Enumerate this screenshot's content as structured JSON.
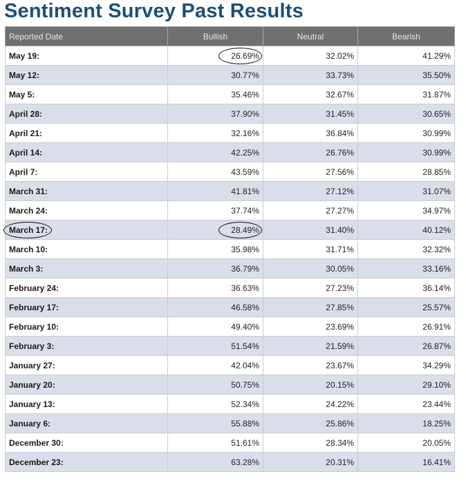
{
  "page": {
    "title": "Sentiment Survey Past Results"
  },
  "table": {
    "headers": [
      "Reported Date",
      "Bullish",
      "Neutral",
      "Bearish"
    ],
    "rows": [
      {
        "date": "May 19:",
        "bullish": "26.69%",
        "neutral": "32.02%",
        "bearish": "41.29%",
        "circled_bullish": true
      },
      {
        "date": "May 12:",
        "bullish": "30.77%",
        "neutral": "33.73%",
        "bearish": "35.50%"
      },
      {
        "date": "May 5:",
        "bullish": "35.46%",
        "neutral": "32.67%",
        "bearish": "31.87%"
      },
      {
        "date": "April 28:",
        "bullish": "37.90%",
        "neutral": "31.45%",
        "bearish": "30.65%"
      },
      {
        "date": "April 21:",
        "bullish": "32.16%",
        "neutral": "36.84%",
        "bearish": "30.99%"
      },
      {
        "date": "April 14:",
        "bullish": "42.25%",
        "neutral": "26.76%",
        "bearish": "30.99%"
      },
      {
        "date": "April 7:",
        "bullish": "43.59%",
        "neutral": "27.56%",
        "bearish": "28.85%"
      },
      {
        "date": "March 31:",
        "bullish": "41.81%",
        "neutral": "27.12%",
        "bearish": "31.07%"
      },
      {
        "date": "March 24:",
        "bullish": "37.74%",
        "neutral": "27.27%",
        "bearish": "34.97%"
      },
      {
        "date": "March 17:",
        "bullish": "28.49%",
        "neutral": "31.40%",
        "bearish": "40.12%",
        "circled_date": true,
        "circled_bullish": true
      },
      {
        "date": "March 10:",
        "bullish": "35.98%",
        "neutral": "31.71%",
        "bearish": "32.32%"
      },
      {
        "date": "March 3:",
        "bullish": "36.79%",
        "neutral": "30.05%",
        "bearish": "33.16%"
      },
      {
        "date": "February 24:",
        "bullish": "36.63%",
        "neutral": "27.23%",
        "bearish": "36.14%"
      },
      {
        "date": "February 17:",
        "bullish": "46.58%",
        "neutral": "27.85%",
        "bearish": "25.57%"
      },
      {
        "date": "February 10:",
        "bullish": "49.40%",
        "neutral": "23.69%",
        "bearish": "26.91%"
      },
      {
        "date": "February 3:",
        "bullish": "51.54%",
        "neutral": "21.59%",
        "bearish": "26.87%"
      },
      {
        "date": "January 27:",
        "bullish": "42.04%",
        "neutral": "23.67%",
        "bearish": "34.29%"
      },
      {
        "date": "January 20:",
        "bullish": "50.75%",
        "neutral": "20.15%",
        "bearish": "29.10%"
      },
      {
        "date": "January 13:",
        "bullish": "52.34%",
        "neutral": "24.22%",
        "bearish": "23.44%"
      },
      {
        "date": "January 6:",
        "bullish": "55.88%",
        "neutral": "25.86%",
        "bearish": "18.25%"
      },
      {
        "date": "December 30:",
        "bullish": "51.61%",
        "neutral": "28.34%",
        "bearish": "20.05%"
      },
      {
        "date": "December 23:",
        "bullish": "63.28%",
        "neutral": "20.31%",
        "bearish": "16.41%"
      }
    ]
  },
  "colors": {
    "title": "#1c4f7a",
    "header_bg": "#707070",
    "row_alt_bg": "#d9dee8"
  }
}
